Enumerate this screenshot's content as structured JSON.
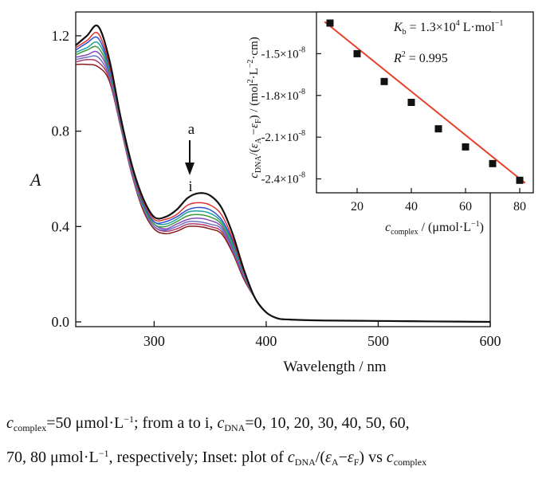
{
  "chart_data": [
    {
      "type": "line",
      "x_axis": {
        "label": "Wavelength / nm",
        "range": [
          230,
          600
        ],
        "ticks": [
          "300",
          "400",
          "500",
          "600"
        ]
      },
      "y_axis": {
        "label": "A",
        "range": [
          -0.02,
          1.3
        ],
        "ticks": [
          "0.0",
          "0.4",
          "0.8",
          "1.2"
        ]
      },
      "annotations": {
        "arrow_start": "a",
        "arrow_end": "i"
      },
      "series": [
        {
          "color": "#111111",
          "x": [
            230,
            240,
            250,
            260,
            270,
            280,
            290,
            300,
            310,
            320,
            330,
            340,
            350,
            360,
            370,
            380,
            390,
            400,
            410,
            420,
            450,
            500,
            550,
            600
          ],
          "y": [
            1.16,
            1.2,
            1.24,
            1.1,
            0.86,
            0.66,
            0.52,
            0.44,
            0.44,
            0.47,
            0.52,
            0.54,
            0.53,
            0.48,
            0.37,
            0.22,
            0.1,
            0.04,
            0.015,
            0.01,
            0.006,
            0.004,
            0.002,
            0.0
          ]
        },
        {
          "color": "#e03030",
          "x": [
            230,
            240,
            250,
            260,
            270,
            280,
            290,
            300,
            310,
            320,
            330,
            340,
            350,
            360,
            370,
            380,
            390,
            400,
            410,
            420,
            450,
            500,
            550,
            600
          ],
          "y": [
            1.15,
            1.18,
            1.21,
            1.08,
            0.85,
            0.65,
            0.51,
            0.43,
            0.43,
            0.45,
            0.49,
            0.5,
            0.49,
            0.45,
            0.35,
            0.21,
            0.1,
            0.04,
            0.015,
            0.01,
            0.006,
            0.004,
            0.002,
            0.0
          ]
        },
        {
          "color": "#2f4fd0",
          "x": [
            230,
            240,
            250,
            260,
            270,
            280,
            290,
            300,
            310,
            320,
            330,
            340,
            350,
            360,
            370,
            380,
            390,
            400,
            410,
            420,
            450,
            500,
            550,
            600
          ],
          "y": [
            1.14,
            1.17,
            1.19,
            1.07,
            0.85,
            0.65,
            0.5,
            0.42,
            0.42,
            0.44,
            0.47,
            0.48,
            0.47,
            0.43,
            0.34,
            0.21,
            0.1,
            0.04,
            0.015,
            0.01,
            0.006,
            0.004,
            0.002,
            0.0
          ]
        },
        {
          "color": "#20a0a0",
          "x": [
            230,
            240,
            250,
            260,
            270,
            280,
            290,
            300,
            310,
            320,
            330,
            340,
            350,
            360,
            370,
            380,
            390,
            400,
            410,
            420,
            450,
            500,
            550,
            600
          ],
          "y": [
            1.13,
            1.15,
            1.17,
            1.06,
            0.84,
            0.64,
            0.5,
            0.42,
            0.41,
            0.43,
            0.46,
            0.465,
            0.455,
            0.42,
            0.33,
            0.2,
            0.1,
            0.04,
            0.015,
            0.01,
            0.006,
            0.004,
            0.002,
            0.0
          ]
        },
        {
          "color": "#3a9a3a",
          "x": [
            230,
            240,
            250,
            260,
            270,
            280,
            290,
            300,
            310,
            320,
            330,
            340,
            350,
            360,
            370,
            380,
            390,
            400,
            410,
            420,
            450,
            500,
            550,
            600
          ],
          "y": [
            1.12,
            1.14,
            1.15,
            1.05,
            0.84,
            0.64,
            0.49,
            0.41,
            0.4,
            0.42,
            0.445,
            0.45,
            0.44,
            0.41,
            0.32,
            0.2,
            0.1,
            0.04,
            0.015,
            0.01,
            0.006,
            0.004,
            0.002,
            0.0
          ]
        },
        {
          "color": "#8a4ac0",
          "x": [
            230,
            240,
            250,
            260,
            270,
            280,
            290,
            300,
            310,
            320,
            330,
            340,
            350,
            360,
            370,
            380,
            390,
            400,
            410,
            420,
            450,
            500,
            550,
            600
          ],
          "y": [
            1.11,
            1.12,
            1.13,
            1.04,
            0.83,
            0.63,
            0.49,
            0.41,
            0.39,
            0.41,
            0.43,
            0.435,
            0.425,
            0.4,
            0.31,
            0.19,
            0.1,
            0.04,
            0.015,
            0.01,
            0.006,
            0.004,
            0.002,
            0.0
          ]
        },
        {
          "color": "#6a70c8",
          "x": [
            230,
            240,
            250,
            260,
            270,
            280,
            290,
            300,
            310,
            320,
            330,
            340,
            350,
            360,
            370,
            380,
            390,
            400,
            410,
            420,
            450,
            500,
            550,
            600
          ],
          "y": [
            1.1,
            1.11,
            1.11,
            1.03,
            0.83,
            0.63,
            0.48,
            0.4,
            0.385,
            0.4,
            0.42,
            0.42,
            0.41,
            0.39,
            0.3,
            0.19,
            0.1,
            0.04,
            0.015,
            0.01,
            0.006,
            0.004,
            0.002,
            0.0
          ]
        },
        {
          "color": "#b03a6a",
          "x": [
            230,
            240,
            250,
            260,
            270,
            280,
            290,
            300,
            310,
            320,
            330,
            340,
            350,
            360,
            370,
            380,
            390,
            400,
            410,
            420,
            450,
            500,
            550,
            600
          ],
          "y": [
            1.09,
            1.1,
            1.09,
            1.02,
            0.82,
            0.62,
            0.48,
            0.4,
            0.38,
            0.39,
            0.41,
            0.41,
            0.4,
            0.38,
            0.3,
            0.19,
            0.1,
            0.04,
            0.015,
            0.01,
            0.006,
            0.004,
            0.002,
            0.0
          ]
        },
        {
          "color": "#8a1a1a",
          "x": [
            230,
            240,
            250,
            260,
            270,
            280,
            290,
            300,
            310,
            320,
            330,
            340,
            350,
            360,
            370,
            380,
            390,
            400,
            410,
            420,
            450,
            500,
            550,
            600
          ],
          "y": [
            1.08,
            1.08,
            1.07,
            1.01,
            0.82,
            0.62,
            0.47,
            0.39,
            0.37,
            0.38,
            0.4,
            0.4,
            0.39,
            0.37,
            0.29,
            0.18,
            0.1,
            0.04,
            0.015,
            0.01,
            0.006,
            0.004,
            0.002,
            0.0
          ]
        }
      ]
    },
    {
      "type": "scatter",
      "x_axis": {
        "range": [
          5,
          85
        ],
        "ticks": [
          "20",
          "40",
          "60",
          "80"
        ]
      },
      "y_axis": {
        "range": [
          -2.5e-08,
          -1.2e-08
        ],
        "ticks": [
          "-1.5×10",
          "-1.8×10",
          "-2.1×10",
          "-2.4×10"
        ],
        "tick_exponent": "-8"
      },
      "points": {
        "x": [
          10,
          20,
          30,
          40,
          50,
          60,
          70,
          80
        ],
        "y": [
          -1.28e-08,
          -1.5e-08,
          -1.7e-08,
          -1.85e-08,
          -2.04e-08,
          -2.17e-08,
          -2.29e-08,
          -2.41e-08
        ]
      },
      "fit": {
        "x": [
          8,
          82
        ],
        "y": [
          -1.27e-08,
          -2.43e-08
        ],
        "color": "#e8412c"
      },
      "kb_value": " = 1.3×10",
      "kb_exponent": "4",
      "kb_units": " L·mol",
      "kb_units_exponent": "−1",
      "r2_value": " = 0.995"
    }
  ],
  "caption": {
    "line1": "=50 μmol·L; from a to i, =0, 10, 20, 30, 40, 50, 60,",
    "line2": "70, 80 μmol·L, respectively; Inset: plot of /(ε−ε) vs"
  }
}
